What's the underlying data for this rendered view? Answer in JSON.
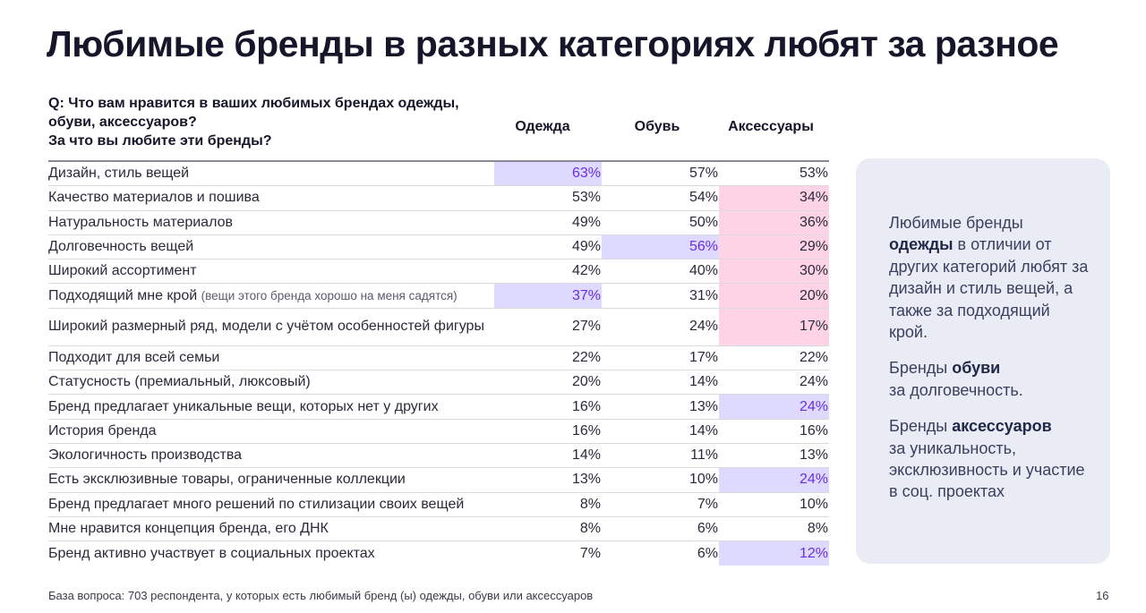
{
  "title": "Любимые бренды в разных категориях любят за разное",
  "question": {
    "line1": "Q:  Что вам нравится в ваших любимых брендах одежды,",
    "line2": "обуви, аксессуаров?",
    "line3": "За что вы любите эти бренды?"
  },
  "colors": {
    "highlight_purple": "#ddd9ff",
    "highlight_purple_text": "#6b2fe0",
    "highlight_pink": "#fed3e6",
    "panel_bg": "#e9ecf4"
  },
  "chart_data": {
    "type": "table",
    "columns": [
      "Одежда",
      "Обувь",
      "Аксессуары"
    ],
    "rows": [
      {
        "label": "Дизайн, стиль вещей",
        "note": "",
        "values": [
          "63%",
          "57%",
          "53%"
        ],
        "highlight": [
          "purple",
          "",
          ""
        ]
      },
      {
        "label": "Качество материалов и пошива",
        "note": "",
        "values": [
          "53%",
          "54%",
          "34%"
        ],
        "highlight": [
          "",
          "",
          "pink"
        ]
      },
      {
        "label": "Натуральность материалов",
        "note": "",
        "values": [
          "49%",
          "50%",
          "36%"
        ],
        "highlight": [
          "",
          "",
          "pink"
        ]
      },
      {
        "label": "Долговечность вещей",
        "note": "",
        "values": [
          "49%",
          "56%",
          "29%"
        ],
        "highlight": [
          "",
          "purple",
          "pink"
        ]
      },
      {
        "label": "Широкий ассортимент",
        "note": "",
        "values": [
          "42%",
          "40%",
          "30%"
        ],
        "highlight": [
          "",
          "",
          "pink"
        ]
      },
      {
        "label": "Подходящий мне крой",
        "note": "(вещи этого бренда хорошо на меня садятся)",
        "values": [
          "37%",
          "31%",
          "20%"
        ],
        "highlight": [
          "purple",
          "",
          "pink"
        ]
      },
      {
        "label": "Широкий размерный ряд, модели с учётом особенностей фигуры",
        "note": "",
        "values": [
          "27%",
          "24%",
          "17%"
        ],
        "highlight": [
          "",
          "",
          "pink"
        ]
      },
      {
        "label": "Подходит для всей семьи",
        "note": "",
        "values": [
          "22%",
          "17%",
          "22%"
        ],
        "highlight": [
          "",
          "",
          ""
        ]
      },
      {
        "label": "Статусность (премиальный, люксовый)",
        "note": "",
        "values": [
          "20%",
          "14%",
          "24%"
        ],
        "highlight": [
          "",
          "",
          ""
        ]
      },
      {
        "label": "Бренд предлагает уникальные вещи, которых нет у других",
        "note": "",
        "values": [
          "16%",
          "13%",
          "24%"
        ],
        "highlight": [
          "",
          "",
          "purple"
        ]
      },
      {
        "label": "История бренда",
        "note": "",
        "values": [
          "16%",
          "14%",
          "16%"
        ],
        "highlight": [
          "",
          "",
          ""
        ]
      },
      {
        "label": "Экологичность производства",
        "note": "",
        "values": [
          "14%",
          "11%",
          "13%"
        ],
        "highlight": [
          "",
          "",
          ""
        ]
      },
      {
        "label": "Есть эксклюзивные товары, ограниченные коллекции",
        "note": "",
        "values": [
          "13%",
          "10%",
          "24%"
        ],
        "highlight": [
          "",
          "",
          "purple"
        ]
      },
      {
        "label": "Бренд предлагает много решений по стилизации своих вещей",
        "note": "",
        "values": [
          "8%",
          "7%",
          "10%"
        ],
        "highlight": [
          "",
          "",
          ""
        ]
      },
      {
        "label": "Мне нравится концепция бренда, его ДНК",
        "note": "",
        "values": [
          "8%",
          "6%",
          "8%"
        ],
        "highlight": [
          "",
          "",
          ""
        ]
      },
      {
        "label": "Бренд активно участвует в социальных проектах",
        "note": "",
        "values": [
          "7%",
          "6%",
          "12%"
        ],
        "highlight": [
          "",
          "",
          "purple"
        ]
      }
    ]
  },
  "side_panel": {
    "p1_a": "Любимые бренды",
    "p1_bold": "одежды",
    "p1_b": " в отличии от других категорий любят за дизайн и стиль вещей,  а также за подходящий крой.",
    "p2_a": "Бренды ",
    "p2_bold": "обуви",
    "p2_b": "за долговечность.",
    "p3_a": "Бренды ",
    "p3_bold": "аксессуаров",
    "p3_b": "за уникальность, эксклюзивность и участие в соц. проектах"
  },
  "footer": "База вопроса: 703  респондента, у которых есть любимый бренд (ы) одежды, обуви или аксессуаров",
  "page_number": "16"
}
